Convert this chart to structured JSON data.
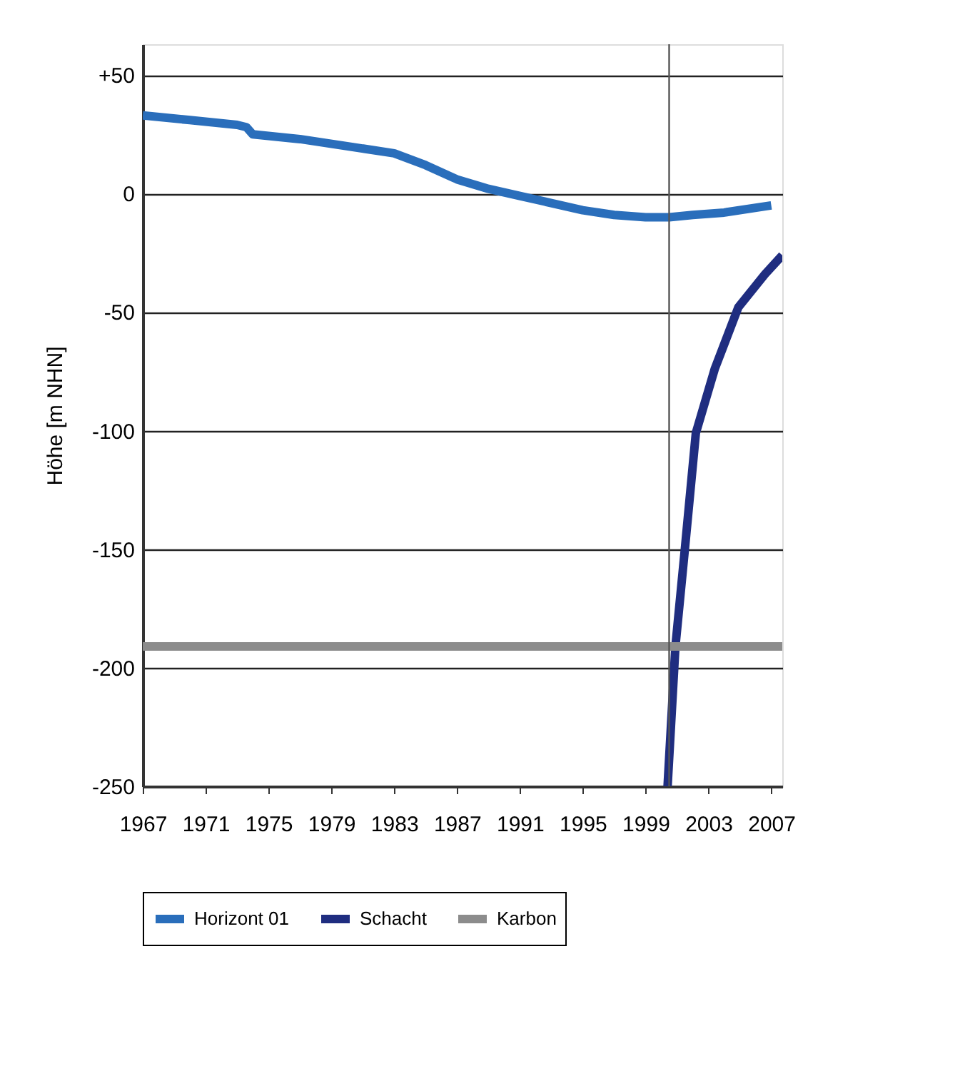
{
  "chart_data": {
    "type": "line",
    "ylabel": "Höhe [m NHN]",
    "xlim": [
      1967,
      2007.7
    ],
    "xticks": [
      1967,
      1971,
      1975,
      1979,
      1983,
      1987,
      1991,
      1995,
      1999,
      2003,
      2007
    ],
    "ylim": [
      -250,
      63
    ],
    "yticks": [
      {
        "value": 50,
        "label": "+50"
      },
      0,
      -50,
      -100,
      -150,
      -200,
      -250
    ],
    "grid": "y",
    "legend": "bottom",
    "marker": "none",
    "line_style": "solid",
    "ref_lines": [
      {
        "axis": "x",
        "value": 2000.5,
        "color": "#555555"
      }
    ],
    "series": [
      {
        "name": "Horizont 01",
        "color": "#2a6ebb",
        "x": [
          1967,
          1970,
          1973,
          1973.6,
          1974,
          1977,
          1980,
          1983,
          1985,
          1987,
          1989,
          1991,
          1993,
          1995,
          1997,
          1999,
          2000.5,
          2002,
          2004,
          2007
        ],
        "values": [
          33,
          31,
          29,
          28,
          25,
          23,
          20,
          17,
          12,
          6,
          2,
          -1,
          -4,
          -7,
          -9,
          -10,
          -10,
          -9,
          -8,
          -5
        ]
      },
      {
        "name": "Schacht",
        "color": "#1f2d80",
        "x": [
          2000.4,
          2000.9,
          2001.5,
          2002.2,
          2003.4,
          2004.9,
          2006.6,
          2007.7
        ],
        "values": [
          -250,
          -191,
          -150,
          -101,
          -74,
          -48,
          -34,
          -26
        ]
      },
      {
        "name": "Karbon",
        "color": "#8c8c8c",
        "x": [
          1967,
          2007.7
        ],
        "values": [
          -191,
          -191
        ]
      }
    ]
  }
}
